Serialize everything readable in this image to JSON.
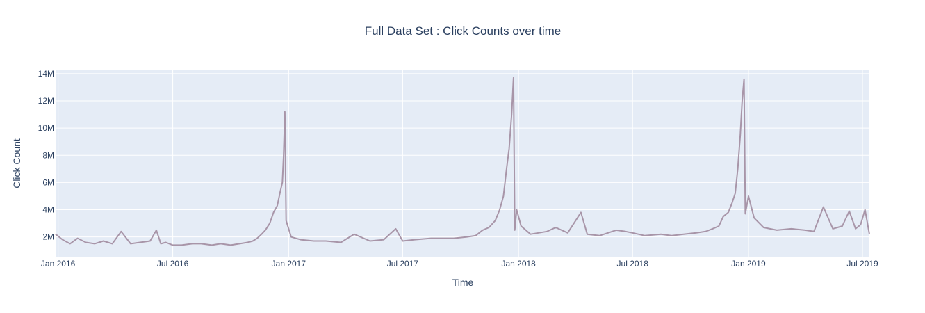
{
  "chart_data": {
    "type": "line",
    "title": "Full Data Set : Click Counts over time",
    "xlabel": "Time",
    "ylabel": "Click Count",
    "x_range": [
      "2015-12-28",
      "2019-07-12"
    ],
    "y_range": [
      500000,
      14300000
    ],
    "x_ticks": [
      {
        "date": "2016-01-01",
        "label": "Jan 2016"
      },
      {
        "date": "2016-07-01",
        "label": "Jul 2016"
      },
      {
        "date": "2017-01-01",
        "label": "Jan 2017"
      },
      {
        "date": "2017-07-01",
        "label": "Jul 2017"
      },
      {
        "date": "2018-01-01",
        "label": "Jan 2018"
      },
      {
        "date": "2018-07-01",
        "label": "Jul 2018"
      },
      {
        "date": "2019-01-01",
        "label": "Jan 2019"
      },
      {
        "date": "2019-07-01",
        "label": "Jul 2019"
      }
    ],
    "y_ticks": [
      {
        "value": 2000000,
        "label": "2M"
      },
      {
        "value": 4000000,
        "label": "4M"
      },
      {
        "value": 6000000,
        "label": "6M"
      },
      {
        "value": 8000000,
        "label": "8M"
      },
      {
        "value": 10000000,
        "label": "10M"
      },
      {
        "value": 12000000,
        "label": "12M"
      },
      {
        "value": 14000000,
        "label": "14M"
      }
    ],
    "grid": true,
    "colors": {
      "line": "#a895a8",
      "plot_bg": "#e5ecf6",
      "grid": "#ffffff",
      "text": "#2a3f5f"
    },
    "series": [
      {
        "x": [
          "2015-12-28",
          "2016-01-08",
          "2016-01-20",
          "2016-02-01",
          "2016-02-14",
          "2016-02-28",
          "2016-03-13",
          "2016-03-27",
          "2016-04-10",
          "2016-04-25",
          "2016-05-10",
          "2016-05-26",
          "2016-06-05",
          "2016-06-12",
          "2016-06-20",
          "2016-07-01",
          "2016-07-15",
          "2016-08-01",
          "2016-08-15",
          "2016-09-01",
          "2016-09-15",
          "2016-10-01",
          "2016-10-15",
          "2016-10-28",
          "2016-11-05",
          "2016-11-12",
          "2016-11-19",
          "2016-11-25",
          "2016-12-02",
          "2016-12-08",
          "2016-12-14",
          "2016-12-18",
          "2016-12-22",
          "2016-12-24",
          "2016-12-26",
          "2016-12-28",
          "2017-01-05",
          "2017-01-20",
          "2017-02-10",
          "2017-03-01",
          "2017-03-25",
          "2017-04-15",
          "2017-05-10",
          "2017-06-01",
          "2017-06-20",
          "2017-07-01",
          "2017-07-20",
          "2017-08-15",
          "2017-09-01",
          "2017-09-20",
          "2017-10-10",
          "2017-10-25",
          "2017-11-05",
          "2017-11-15",
          "2017-11-25",
          "2017-12-02",
          "2017-12-08",
          "2017-12-13",
          "2017-12-17",
          "2017-12-21",
          "2017-12-24",
          "2017-12-26",
          "2017-12-29",
          "2018-01-05",
          "2018-01-20",
          "2018-02-15",
          "2018-03-01",
          "2018-03-20",
          "2018-04-10",
          "2018-04-20",
          "2018-05-10",
          "2018-06-05",
          "2018-06-20",
          "2018-07-01",
          "2018-07-20",
          "2018-08-15",
          "2018-09-01",
          "2018-09-20",
          "2018-10-10",
          "2018-10-25",
          "2018-11-05",
          "2018-11-15",
          "2018-11-22",
          "2018-11-30",
          "2018-12-06",
          "2018-12-11",
          "2018-12-15",
          "2018-12-19",
          "2018-12-22",
          "2018-12-25",
          "2018-12-27",
          "2019-01-01",
          "2019-01-10",
          "2019-01-25",
          "2019-02-15",
          "2019-03-10",
          "2019-04-01",
          "2019-04-15",
          "2019-04-30",
          "2019-05-15",
          "2019-05-30",
          "2019-06-10",
          "2019-06-20",
          "2019-06-28",
          "2019-07-05",
          "2019-07-12"
        ],
        "y": [
          2200000,
          1800000,
          1500000,
          1900000,
          1600000,
          1500000,
          1700000,
          1500000,
          2400000,
          1500000,
          1600000,
          1700000,
          2500000,
          1500000,
          1600000,
          1400000,
          1400000,
          1500000,
          1500000,
          1400000,
          1500000,
          1400000,
          1500000,
          1600000,
          1700000,
          1900000,
          2200000,
          2500000,
          3000000,
          3800000,
          4300000,
          5200000,
          6000000,
          8000000,
          11200000,
          3200000,
          2000000,
          1800000,
          1700000,
          1700000,
          1600000,
          2200000,
          1700000,
          1800000,
          2600000,
          1700000,
          1800000,
          1900000,
          1900000,
          1900000,
          2000000,
          2100000,
          2500000,
          2700000,
          3200000,
          4000000,
          5000000,
          7000000,
          8500000,
          11000000,
          13700000,
          2500000,
          4000000,
          2800000,
          2200000,
          2400000,
          2700000,
          2300000,
          3800000,
          2200000,
          2100000,
          2500000,
          2400000,
          2300000,
          2100000,
          2200000,
          2100000,
          2200000,
          2300000,
          2400000,
          2600000,
          2800000,
          3500000,
          3800000,
          4500000,
          5200000,
          7000000,
          9500000,
          12000000,
          13600000,
          3700000,
          5000000,
          3400000,
          2700000,
          2500000,
          2600000,
          2500000,
          2400000,
          4200000,
          2600000,
          2800000,
          3900000,
          2600000,
          2900000,
          4000000,
          2200000
        ]
      }
    ]
  }
}
